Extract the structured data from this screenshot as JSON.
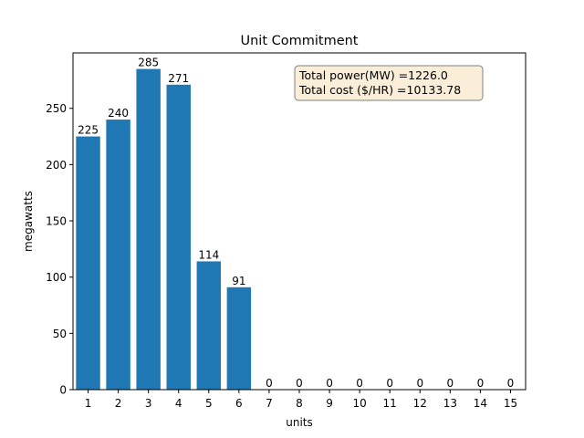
{
  "chart_data": {
    "type": "bar",
    "title": "Unit Commitment",
    "xlabel": "units",
    "ylabel": "megawatts",
    "categories": [
      "1",
      "2",
      "3",
      "4",
      "5",
      "6",
      "7",
      "8",
      "9",
      "10",
      "11",
      "12",
      "13",
      "14",
      "15"
    ],
    "values": [
      225,
      240,
      285,
      271,
      114,
      91,
      0,
      0,
      0,
      0,
      0,
      0,
      0,
      0,
      0
    ],
    "bar_labels": [
      "225",
      "240",
      "285",
      "271",
      "114",
      "91",
      "0",
      "0",
      "0",
      "0",
      "0",
      "0",
      "0",
      "0",
      "0"
    ],
    "ylim": [
      0,
      299.25
    ],
    "yticks": [
      0,
      50,
      100,
      150,
      200,
      250
    ],
    "grid": false,
    "bar_color": "#1f77b4",
    "annotation": {
      "lines": [
        "Total power(MW) =1226.0",
        "Total cost ($/HR) =10133.78"
      ],
      "background": "#f5deb3",
      "placement": "top-right"
    }
  }
}
